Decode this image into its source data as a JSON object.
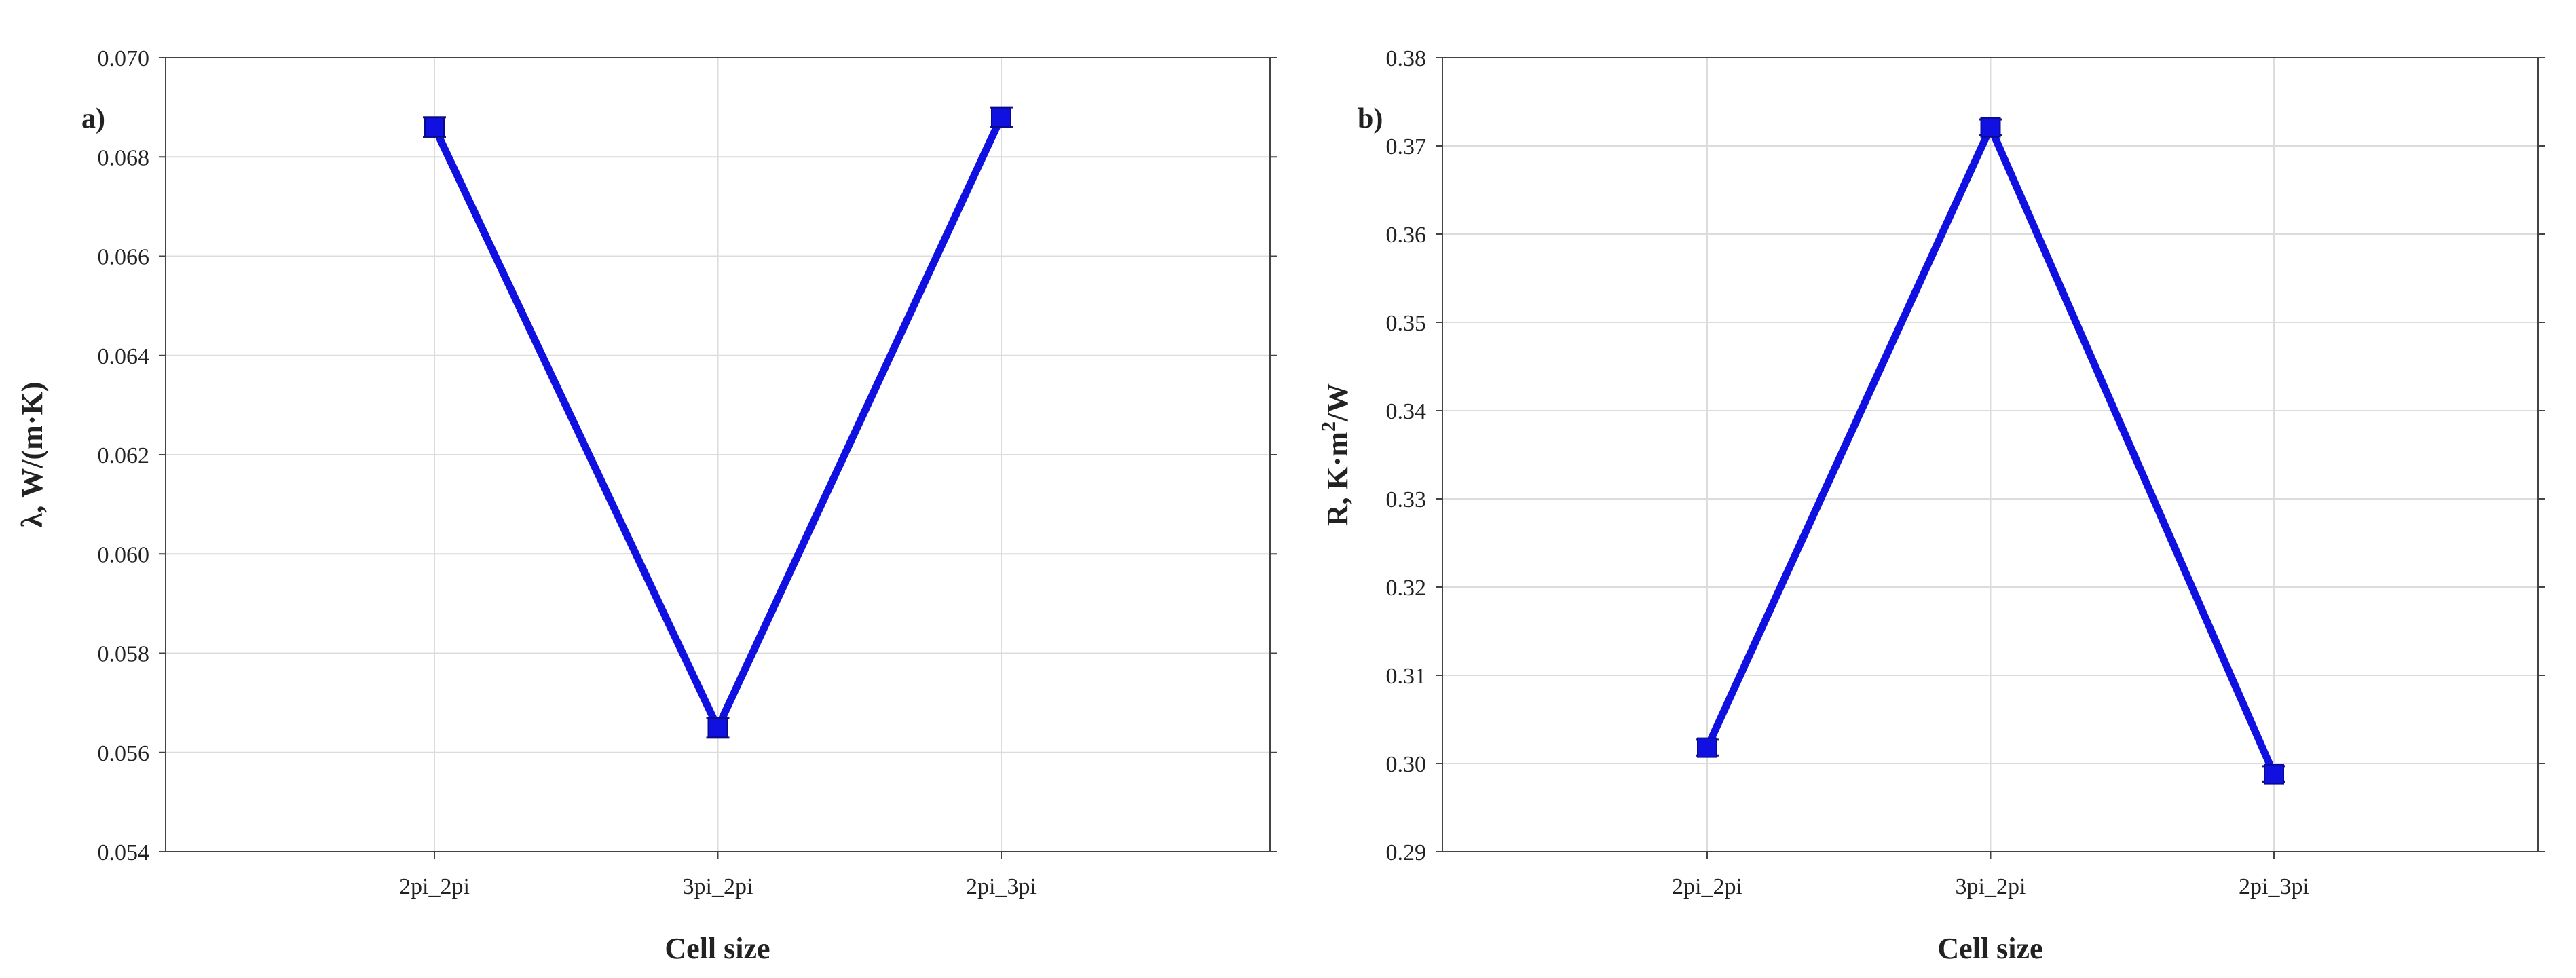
{
  "chart_data": [
    {
      "type": "line",
      "panel_label": "a)",
      "xlabel": "Cell size",
      "ylabel": "λ, W/(m·K)",
      "categories": [
        "2pi_2pi",
        "3pi_2pi",
        "2pi_3pi"
      ],
      "series": [
        {
          "values": [
            0.0686,
            0.0565,
            0.0688
          ],
          "error": [
            0.0002,
            0.0002,
            0.0002
          ],
          "color": "#1010e0"
        }
      ],
      "ylim": [
        0.054,
        0.07
      ],
      "yticks": [
        "0.054",
        "0.056",
        "0.058",
        "0.060",
        "0.062",
        "0.064",
        "0.066",
        "0.068",
        "0.070"
      ],
      "grid": true
    },
    {
      "type": "line",
      "panel_label": "b)",
      "xlabel": "Cell size",
      "ylabel_main": "R, K·m",
      "ylabel_sup": "2",
      "ylabel_tail": "/W",
      "categories": [
        "2pi_2pi",
        "3pi_2pi",
        "2pi_3pi"
      ],
      "series": [
        {
          "values": [
            0.3018,
            0.3721,
            0.2988
          ],
          "error": [
            0.0009,
            0.0009,
            0.0009
          ],
          "color": "#1010e0"
        }
      ],
      "ylim": [
        0.29,
        0.38
      ],
      "yticks": [
        "0.29",
        "0.30",
        "0.31",
        "0.32",
        "0.33",
        "0.34",
        "0.35",
        "0.36",
        "0.37",
        "0.38"
      ],
      "grid": true
    }
  ]
}
